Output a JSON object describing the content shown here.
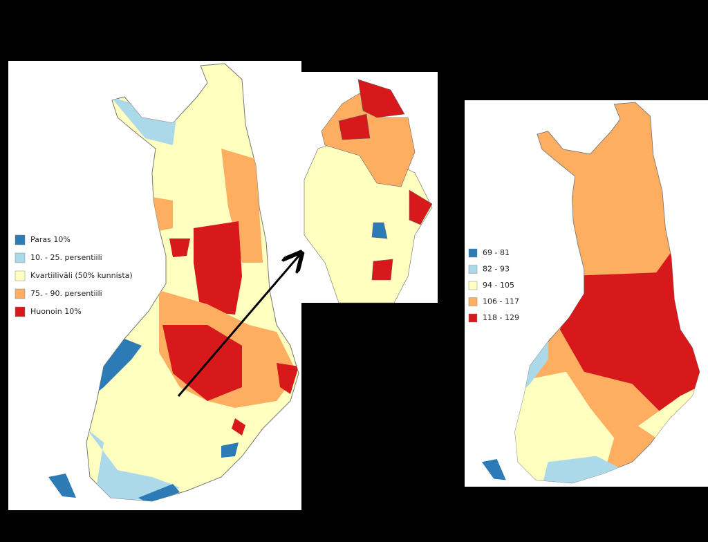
{
  "left_map": {
    "legend": [
      {
        "label": "Paras 10%",
        "color": "#2c7bb6"
      },
      {
        "label": "10. - 25. persentiili",
        "color": "#abd9e9"
      },
      {
        "label": "Kvartiiliväli (50% kunnista)",
        "color": "#ffffbf"
      },
      {
        "label": "75. - 90. persentiili",
        "color": "#fdae61"
      },
      {
        "label": "Huonoin 10%",
        "color": "#d7191c"
      }
    ]
  },
  "right_map": {
    "legend": [
      {
        "label": "69 - 81",
        "color": "#2c7bb6"
      },
      {
        "label": "82 - 93",
        "color": "#abd9e9"
      },
      {
        "label": "94 - 105",
        "color": "#ffffbf"
      },
      {
        "label": "106 - 117",
        "color": "#fdae61"
      },
      {
        "label": "118 - 129",
        "color": "#d7191c"
      }
    ]
  }
}
